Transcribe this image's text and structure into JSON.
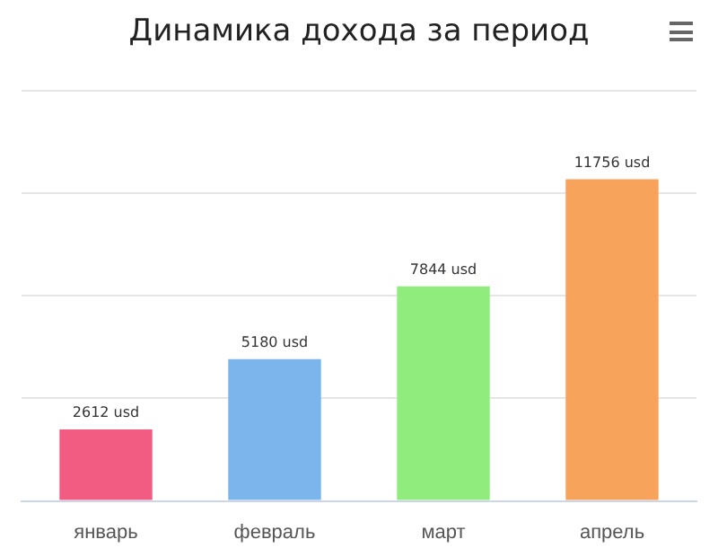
{
  "chart_data": {
    "type": "bar",
    "title": "Динамика дохода за период",
    "categories": [
      "январь",
      "февраль",
      "март",
      "апрель"
    ],
    "values": [
      2612,
      5180,
      7844,
      11756
    ],
    "colors": [
      "#f25c82",
      "#7cb5ec",
      "#90ed7d",
      "#f7a35c"
    ],
    "value_labels": [
      "2612 usd",
      "5180 usd",
      "7844 usd",
      "11756 usd"
    ],
    "ylim": [
      0,
      15000
    ],
    "yticks": [
      {
        "value": 0,
        "label": null
      },
      {
        "value": 3750,
        "label": null
      },
      {
        "value": 7500,
        "label": null
      },
      {
        "value": 11250,
        "label": null
      },
      {
        "value": 15000,
        "label": null
      }
    ],
    "grid": "y",
    "tick_labels": "x",
    "legend": false
  }
}
